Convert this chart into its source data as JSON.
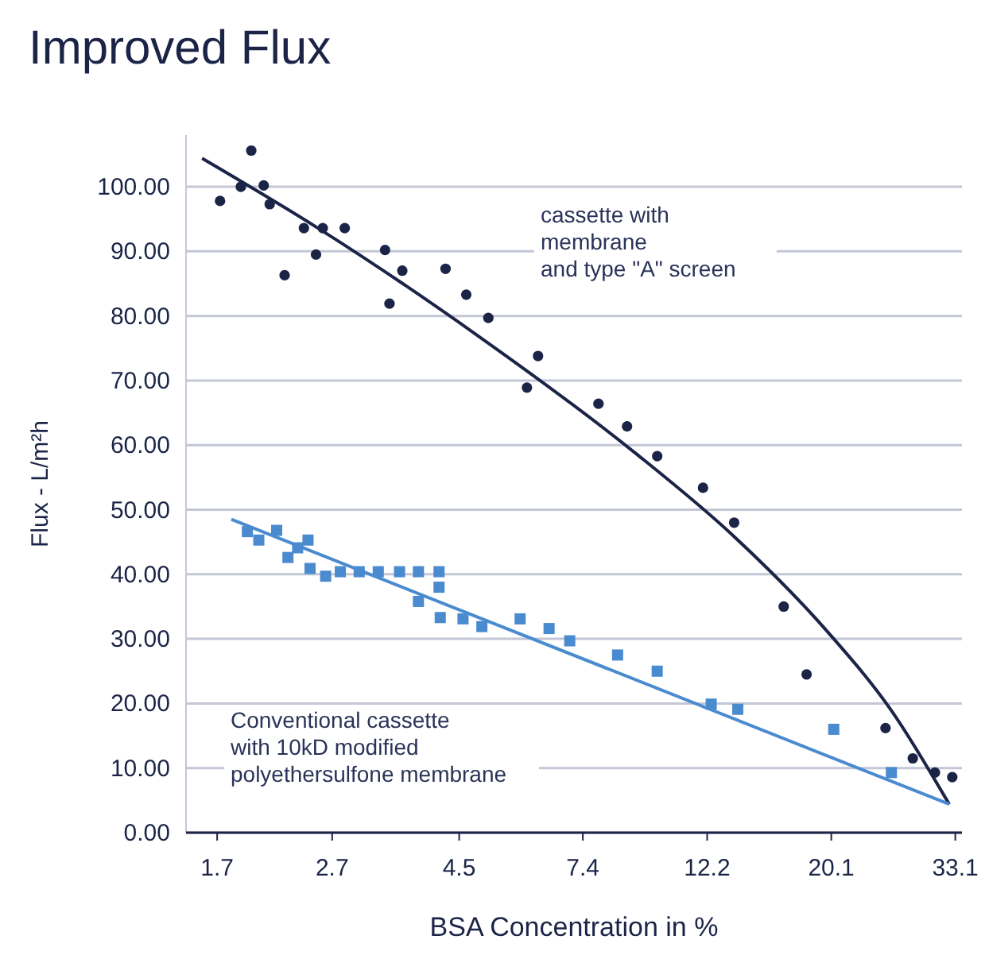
{
  "chart_data": {
    "type": "scatter",
    "title": "Improved Flux",
    "xlabel": "BSA Concentration in %",
    "ylabel": "Flux - L/m²h",
    "log": "x",
    "grid": "y",
    "xlim": [
      1.5,
      34
    ],
    "xticks": [
      1.7,
      2.7,
      4.5,
      7.4,
      12.2,
      20.1,
      33.1
    ],
    "ylim": [
      0,
      108
    ],
    "yticks": [
      {
        "value": 0,
        "label": "0.00"
      },
      {
        "value": 10,
        "label": "10.00"
      },
      {
        "value": 20,
        "label": "20.00"
      },
      {
        "value": 30,
        "label": "30.00"
      },
      {
        "value": 40,
        "label": "40.00"
      },
      {
        "value": 50,
        "label": "50.00"
      },
      {
        "value": 60,
        "label": "60.00"
      },
      {
        "value": 70,
        "label": "70.00"
      },
      {
        "value": 80,
        "label": "80.00"
      },
      {
        "value": 90,
        "label": "90.00"
      },
      {
        "value": 100,
        "label": "100.00"
      }
    ],
    "series": [
      {
        "marker": "circle",
        "color": "#1b2447",
        "x": [
          1.72,
          1.87,
          1.95,
          2.05,
          2.1,
          2.23,
          2.41,
          2.53,
          2.6,
          2.84,
          3.34,
          3.4,
          3.58,
          4.26,
          4.63,
          5.06,
          5.91,
          6.18,
          7.88,
          8.84,
          9.98,
          12.0,
          13.6,
          16.6,
          18.2,
          25.0,
          27.9,
          30.5,
          32.7
        ],
        "values": [
          97.8,
          100.0,
          105.6,
          100.2,
          97.3,
          86.3,
          93.6,
          89.5,
          93.6,
          93.6,
          90.2,
          81.9,
          87.0,
          87.3,
          83.3,
          79.7,
          68.9,
          73.8,
          66.4,
          62.9,
          58.3,
          53.4,
          48.0,
          35.0,
          24.5,
          16.2,
          11.5,
          9.3,
          8.6
        ]
      },
      {
        "type": "line",
        "marker": "none",
        "line_style": "solid",
        "color": "#1b2447",
        "x": [
          1.6,
          2.55,
          4.84,
          9.19,
          13.5,
          19.8,
          25.6,
          32.3
        ],
        "values": [
          104.4,
          93.6,
          77.0,
          58.6,
          46.1,
          31.1,
          18.9,
          4.4
        ]
      },
      {
        "marker": "square",
        "color": "#4a8bd0",
        "x": [
          1.92,
          2.01,
          2.16,
          2.26,
          2.35,
          2.45,
          2.47,
          2.63,
          2.79,
          3.01,
          3.25,
          3.54,
          3.82,
          4.15,
          4.15,
          3.82,
          4.17,
          4.57,
          4.93,
          5.75,
          6.46,
          7.02,
          8.51,
          9.98,
          12.4,
          13.8,
          20.3,
          25.6
        ],
        "values": [
          46.6,
          45.3,
          46.8,
          42.6,
          44.1,
          45.3,
          40.9,
          39.7,
          40.4,
          40.4,
          40.4,
          40.4,
          40.4,
          40.4,
          38.0,
          35.8,
          33.3,
          33.1,
          31.9,
          33.1,
          31.6,
          29.7,
          27.5,
          25.0,
          19.9,
          19.1,
          16.0,
          9.3
        ]
      },
      {
        "type": "line",
        "marker": "none",
        "line_style": "solid",
        "color": "#4a8bd0",
        "x": [
          1.8,
          32.3
        ],
        "values": [
          48.5,
          4.4
        ]
      }
    ],
    "annotations": [
      "cassette with\nmembrane\nand type \"A\" screen",
      "Conventional cassette\nwith 10kD modified\npolyethersulfone membrane"
    ]
  }
}
